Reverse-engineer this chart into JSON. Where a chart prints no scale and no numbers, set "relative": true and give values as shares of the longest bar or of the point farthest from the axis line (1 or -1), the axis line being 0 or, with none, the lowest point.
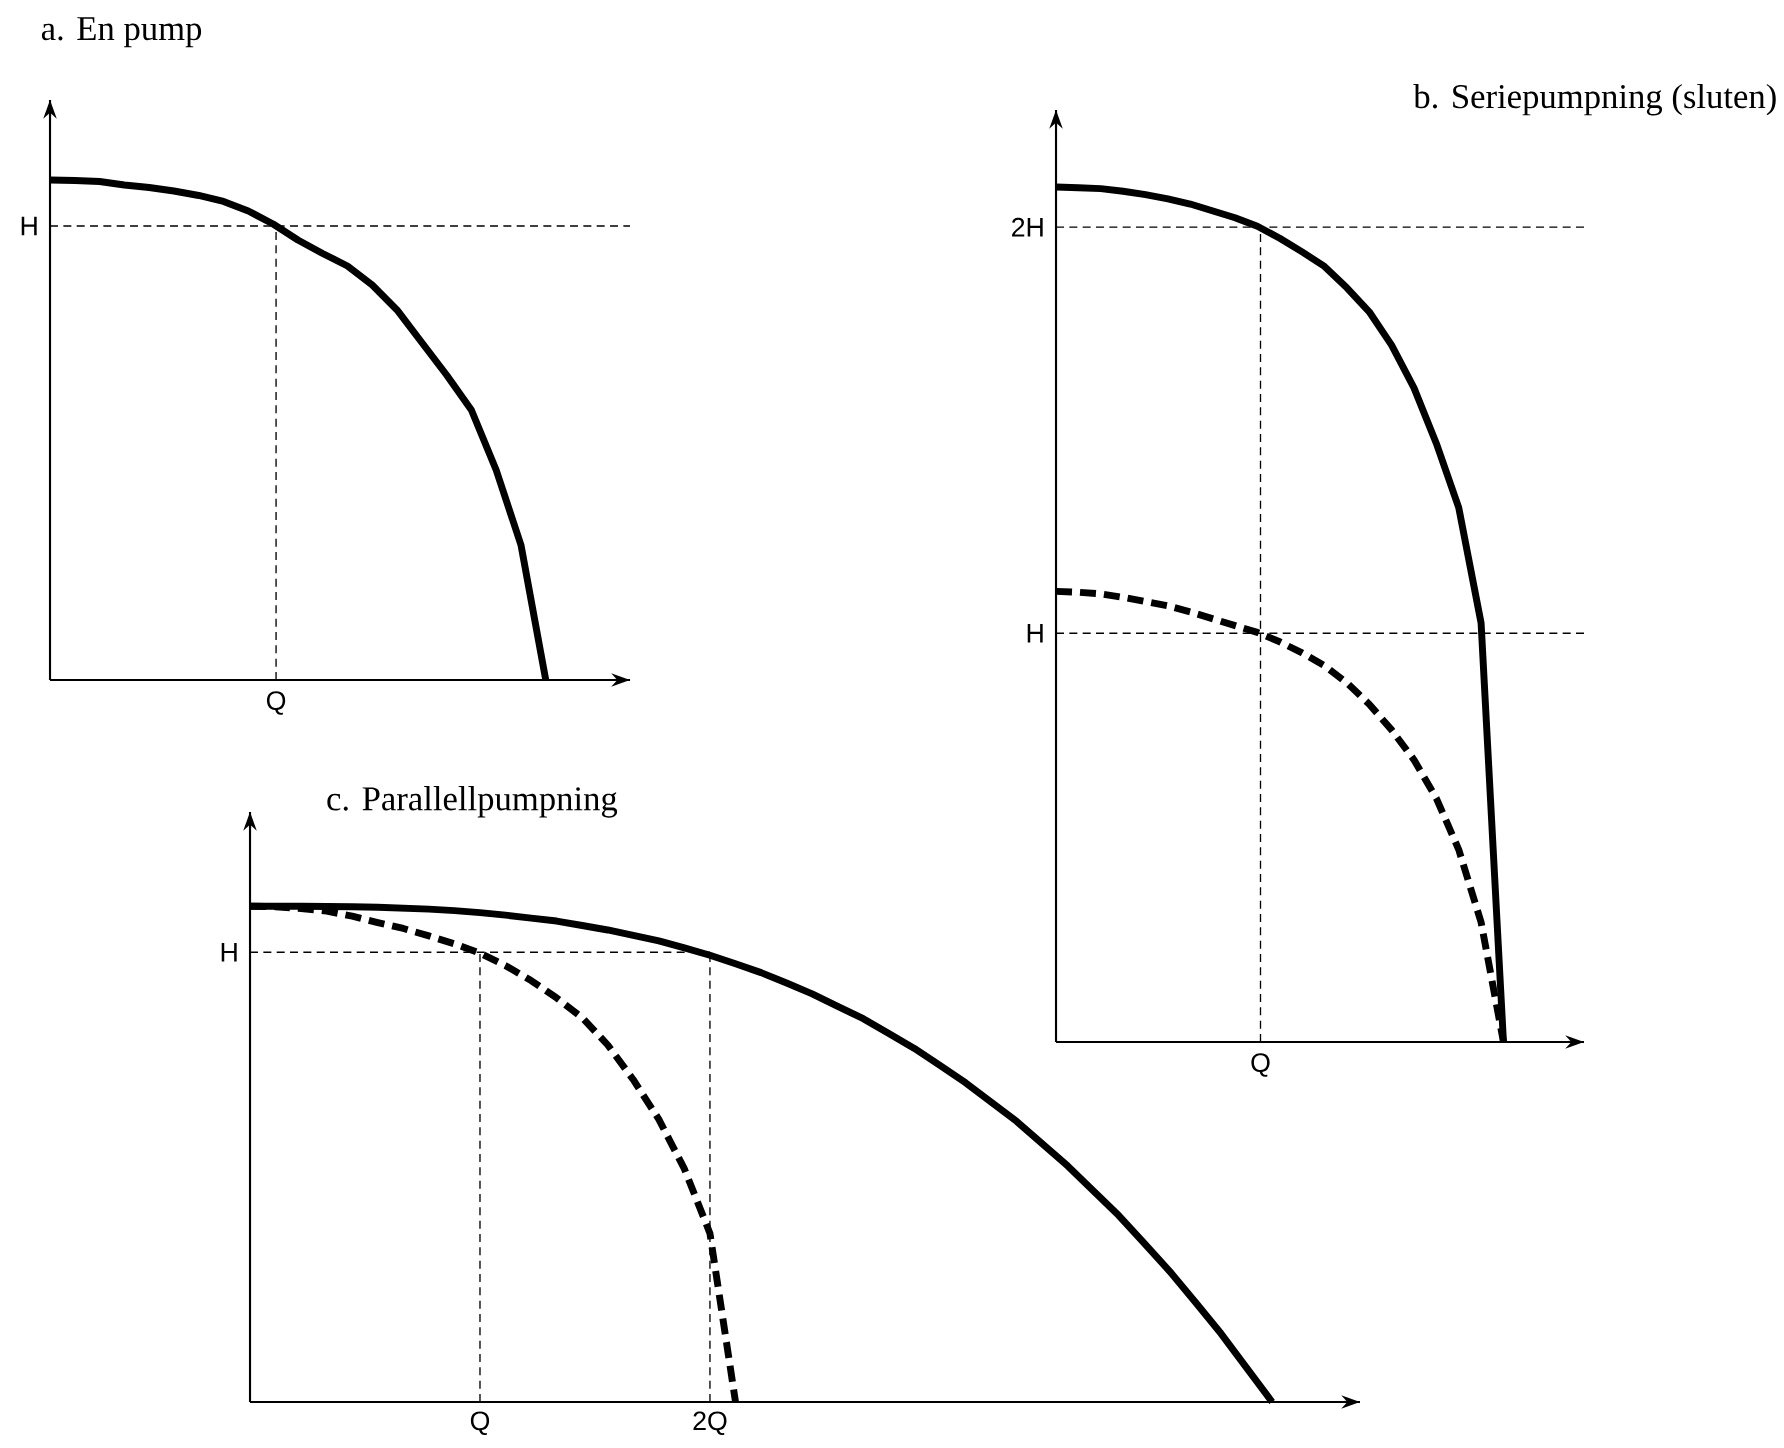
{
  "chart_data": [
    {
      "type": "line",
      "title": "a. En pump",
      "relative": true,
      "tick_labels": false,
      "line_style": "solid",
      "annotations": [
        "Q"
      ],
      "categories": [
        null,
        null,
        null,
        null,
        null,
        null,
        null,
        null,
        null,
        null,
        null,
        null,
        null,
        null,
        null,
        null,
        null,
        null,
        null,
        null,
        null
      ],
      "series": [
        {
          "color": "#000000",
          "values": [
            1,
            0.999,
            0.997,
            0.99,
            0.985,
            0.978,
            0.969,
            0.957,
            0.938,
            0.912,
            0.88,
            0.853,
            0.828,
            0.79,
            0.74,
            0.675,
            0.61,
            0.54,
            0.42,
            0.27,
            0
          ]
        }
      ],
      "ref_lines": [
        {
          "axis": "y",
          "value": 0.908,
          "label": "H",
          "line_style": "dashed"
        }
      ]
    },
    {
      "type": "line",
      "title": "b. Seriepumpning (sluten)",
      "relative": true,
      "tick_labels": false,
      "annotations": [
        "Q"
      ],
      "categories": [
        null,
        null,
        null,
        null,
        null,
        null,
        null,
        null,
        null,
        null,
        null,
        null,
        null,
        null,
        null,
        null,
        null,
        null,
        null,
        null,
        null
      ],
      "series": [
        {
          "color": "#000000",
          "line_style": "solid",
          "values": [
            1,
            0.999,
            0.998,
            0.995,
            0.991,
            0.986,
            0.98,
            0.972,
            0.964,
            0.954,
            0.94,
            0.924,
            0.907,
            0.882,
            0.854,
            0.815,
            0.765,
            0.7,
            0.625,
            0.49,
            0
          ]
        },
        {
          "color": "#000000",
          "line_style": "dashed",
          "values": [
            0.527,
            0.526,
            0.524,
            0.52,
            0.515,
            0.51,
            0.503,
            0.495,
            0.487,
            0.479,
            0.468,
            0.455,
            0.44,
            0.42,
            0.395,
            0.365,
            0.33,
            0.285,
            0.225,
            0.14,
            0
          ]
        }
      ],
      "ref_lines": [
        {
          "axis": "y",
          "value": 0.953,
          "label": "2H",
          "line_style": "dashed"
        },
        {
          "axis": "y",
          "value": 0.478,
          "label": "H",
          "line_style": "dashed"
        }
      ]
    },
    {
      "type": "line",
      "title": "c. Parallellpumpning",
      "relative": true,
      "tick_labels": "x",
      "categories": [
        null,
        null,
        null,
        null,
        null,
        null,
        null,
        null,
        null,
        "Q",
        null,
        null,
        null,
        null,
        null,
        null,
        null,
        null,
        "2Q",
        null,
        null,
        null,
        null,
        null,
        null,
        null,
        null,
        null,
        null,
        null,
        null,
        null,
        null,
        null,
        null,
        null,
        null,
        null,
        null,
        null,
        null
      ],
      "series": [
        {
          "color": "#000000",
          "line_style": "solid",
          "values": [
            1,
            1,
            1,
            0.9995,
            0.999,
            0.998,
            0.996,
            0.994,
            0.991,
            0.987,
            0.982,
            0.976,
            0.97,
            0.961,
            0.952,
            0.941,
            0.93,
            0.916,
            0.901,
            0.884,
            0.866,
            0.845,
            0.823,
            0.798,
            0.773,
            0.743,
            0.713,
            0.679,
            0.644,
            0.605,
            0.566,
            0.521,
            0.476,
            0.426,
            0.376,
            0.32,
            0.263,
            0.201,
            0.138,
            0.069,
            0
          ]
        },
        {
          "color": "#000000",
          "line_style": "dashed",
          "values": [
            1,
            0.999,
            0.995,
            0.99,
            0.98,
            0.967,
            0.955,
            0.94,
            0.924,
            0.905,
            0.88,
            0.85,
            0.815,
            0.775,
            0.72,
            0.65,
            0.57,
            0.47,
            0.34,
            0,
            null,
            null,
            null,
            null,
            null,
            null,
            null,
            null,
            null,
            null,
            null,
            null,
            null,
            null,
            null,
            null,
            null,
            null,
            null,
            null,
            null
          ]
        }
      ],
      "ref_lines": [
        {
          "axis": "y",
          "value": 0.907,
          "label": "H",
          "line_style": "dashed"
        }
      ]
    }
  ]
}
